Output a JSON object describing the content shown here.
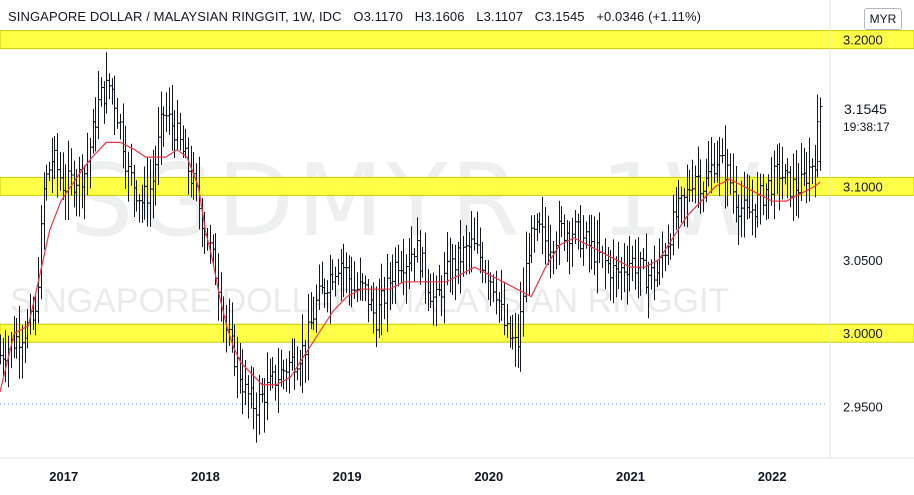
{
  "header": {
    "symbol_name": "SINGAPORE DOLLAR / MALAYSIAN RINGGIT, 1W, IDC",
    "open": "O3.1170",
    "high": "H3.1606",
    "low": "L3.1107",
    "close": "C3.1545",
    "change": "+0.0346 (+1.11%)"
  },
  "currency": "MYR",
  "last_price": "3.1545",
  "countdown": "19:38:17",
  "watermark": {
    "ticker": "SGDMYR",
    "interval": "1W",
    "description": "SINGAPORE DOLLAR / MALAYSIAN RINGGIT"
  },
  "colors": {
    "candle": "#131722",
    "moving_average": "#f23645",
    "highlight": "#ffff33",
    "highlight_border": "#cccc00",
    "gridline_dotted": "#5b9cf6"
  },
  "chart_data": {
    "type": "ohlc",
    "y_axis": {
      "range": [
        2.915,
        3.227
      ],
      "ticks": [
        3.2,
        3.1,
        3.05,
        3.0,
        2.95
      ],
      "tick_labels": [
        "3.2000",
        "3.1000",
        "3.0500",
        "3.0000",
        "2.9500"
      ]
    },
    "x_axis": {
      "range": [
        2016.55,
        2022.38
      ],
      "ticks": [
        2017,
        2018,
        2019,
        2020,
        2021,
        2022
      ],
      "tick_labels": [
        "2017",
        "2018",
        "2019",
        "2020",
        "2021",
        "2022"
      ]
    },
    "highlighted_levels": [
      3.2,
      3.1,
      3.0
    ],
    "dotted_level": 2.9518,
    "close_path": [
      [
        2016.55,
        2.985
      ],
      [
        2016.7,
        3.0
      ],
      [
        2016.8,
        3.01
      ],
      [
        2016.86,
        3.1
      ],
      [
        2016.92,
        3.12
      ],
      [
        2017.0,
        3.1
      ],
      [
        2017.15,
        3.11
      ],
      [
        2017.25,
        3.16
      ],
      [
        2017.33,
        3.17
      ],
      [
        2017.4,
        3.14
      ],
      [
        2017.45,
        3.11
      ],
      [
        2017.55,
        3.09
      ],
      [
        2017.62,
        3.1
      ],
      [
        2017.7,
        3.15
      ],
      [
        2017.78,
        3.14
      ],
      [
        2017.85,
        3.12
      ],
      [
        2017.92,
        3.1
      ],
      [
        2017.97,
        3.08
      ],
      [
        2018.05,
        3.05
      ],
      [
        2018.1,
        3.03
      ],
      [
        2018.15,
        3.0
      ],
      [
        2018.22,
        2.98
      ],
      [
        2018.28,
        2.96
      ],
      [
        2018.35,
        2.95
      ],
      [
        2018.42,
        2.96
      ],
      [
        2018.5,
        2.97
      ],
      [
        2018.6,
        2.98
      ],
      [
        2018.7,
        2.99
      ],
      [
        2018.78,
        3.02
      ],
      [
        2018.88,
        3.04
      ],
      [
        2018.95,
        3.05
      ],
      [
        2019.05,
        3.03
      ],
      [
        2019.12,
        3.03
      ],
      [
        2019.2,
        3.01
      ],
      [
        2019.28,
        3.03
      ],
      [
        2019.35,
        3.05
      ],
      [
        2019.42,
        3.05
      ],
      [
        2019.48,
        3.06
      ],
      [
        2019.55,
        3.04
      ],
      [
        2019.62,
        3.02
      ],
      [
        2019.7,
        3.04
      ],
      [
        2019.78,
        3.05
      ],
      [
        2019.88,
        3.06
      ],
      [
        2019.95,
        3.05
      ],
      [
        2020.05,
        3.03
      ],
      [
        2020.12,
        3.0
      ],
      [
        2020.2,
        2.99
      ],
      [
        2020.28,
        3.06
      ],
      [
        2020.35,
        3.07
      ],
      [
        2020.42,
        3.06
      ],
      [
        2020.5,
        3.07
      ],
      [
        2020.6,
        3.07
      ],
      [
        2020.7,
        3.06
      ],
      [
        2020.8,
        3.05
      ],
      [
        2020.9,
        3.04
      ],
      [
        2021.0,
        3.05
      ],
      [
        2021.1,
        3.04
      ],
      [
        2021.18,
        3.04
      ],
      [
        2021.25,
        3.06
      ],
      [
        2021.32,
        3.08
      ],
      [
        2021.38,
        3.09
      ],
      [
        2021.45,
        3.11
      ],
      [
        2021.52,
        3.1
      ],
      [
        2021.6,
        3.12
      ],
      [
        2021.68,
        3.11
      ],
      [
        2021.75,
        3.09
      ],
      [
        2021.82,
        3.08
      ],
      [
        2021.9,
        3.09
      ],
      [
        2021.97,
        3.1
      ],
      [
        2022.05,
        3.11
      ],
      [
        2022.12,
        3.1
      ],
      [
        2022.2,
        3.1
      ],
      [
        2022.25,
        3.11
      ],
      [
        2022.3,
        3.12
      ],
      [
        2022.34,
        3.155
      ]
    ],
    "moving_average": [
      [
        2016.55,
        2.96
      ],
      [
        2016.65,
        3.0
      ],
      [
        2016.75,
        3.005
      ],
      [
        2016.82,
        3.035
      ],
      [
        2016.9,
        3.07
      ],
      [
        2016.98,
        3.09
      ],
      [
        2017.05,
        3.1
      ],
      [
        2017.12,
        3.11
      ],
      [
        2017.2,
        3.12
      ],
      [
        2017.3,
        3.13
      ],
      [
        2017.4,
        3.13
      ],
      [
        2017.5,
        3.125
      ],
      [
        2017.58,
        3.12
      ],
      [
        2017.65,
        3.12
      ],
      [
        2017.72,
        3.12
      ],
      [
        2017.8,
        3.125
      ],
      [
        2017.87,
        3.12
      ],
      [
        2017.95,
        3.1
      ],
      [
        2018.0,
        3.07
      ],
      [
        2018.05,
        3.05
      ],
      [
        2018.1,
        3.025
      ],
      [
        2018.15,
        3.005
      ],
      [
        2018.2,
        2.99
      ],
      [
        2018.25,
        2.98
      ],
      [
        2018.3,
        2.975
      ],
      [
        2018.4,
        2.965
      ],
      [
        2018.5,
        2.965
      ],
      [
        2018.6,
        2.97
      ],
      [
        2018.7,
        2.985
      ],
      [
        2018.8,
        3.0
      ],
      [
        2018.9,
        3.015
      ],
      [
        2019.0,
        3.025
      ],
      [
        2019.1,
        3.03
      ],
      [
        2019.2,
        3.03
      ],
      [
        2019.3,
        3.03
      ],
      [
        2019.4,
        3.035
      ],
      [
        2019.5,
        3.035
      ],
      [
        2019.6,
        3.035
      ],
      [
        2019.7,
        3.035
      ],
      [
        2019.8,
        3.04
      ],
      [
        2019.9,
        3.045
      ],
      [
        2020.0,
        3.04
      ],
      [
        2020.1,
        3.035
      ],
      [
        2020.2,
        3.03
      ],
      [
        2020.3,
        3.025
      ],
      [
        2020.4,
        3.045
      ],
      [
        2020.5,
        3.06
      ],
      [
        2020.6,
        3.065
      ],
      [
        2020.7,
        3.06
      ],
      [
        2020.8,
        3.055
      ],
      [
        2020.9,
        3.05
      ],
      [
        2021.0,
        3.045
      ],
      [
        2021.1,
        3.045
      ],
      [
        2021.2,
        3.05
      ],
      [
        2021.3,
        3.065
      ],
      [
        2021.4,
        3.08
      ],
      [
        2021.5,
        3.09
      ],
      [
        2021.6,
        3.1
      ],
      [
        2021.7,
        3.105
      ],
      [
        2021.8,
        3.1
      ],
      [
        2021.9,
        3.095
      ],
      [
        2022.0,
        3.09
      ],
      [
        2022.1,
        3.09
      ],
      [
        2022.2,
        3.095
      ],
      [
        2022.3,
        3.1
      ],
      [
        2022.34,
        3.103
      ]
    ]
  }
}
